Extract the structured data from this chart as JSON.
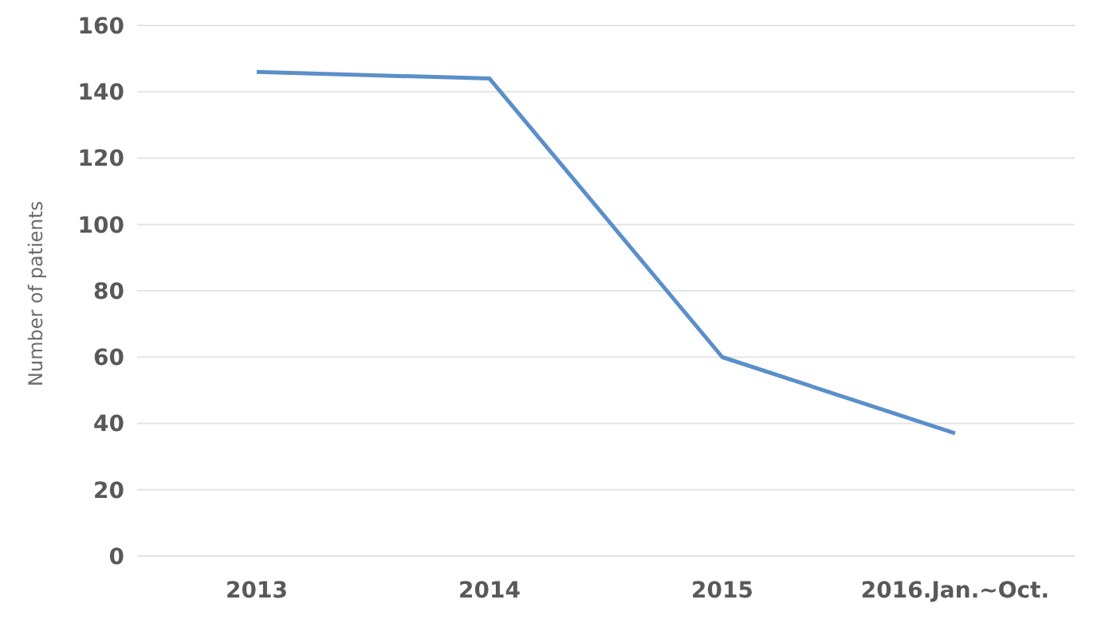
{
  "chart_data": {
    "type": "line",
    "ylabel": "Number of patients",
    "categories": [
      "2013",
      "2014",
      "2015",
      "2016.Jan.~Oct."
    ],
    "series": [
      {
        "color": "#5b8fc9",
        "values": [
          146,
          144,
          60,
          37
        ]
      }
    ],
    "ylim": [
      0,
      160
    ],
    "yticks": [
      0,
      20,
      40,
      60,
      80,
      100,
      120,
      140,
      160
    ],
    "grid": "y",
    "marker": "none",
    "line_style": "solid"
  }
}
